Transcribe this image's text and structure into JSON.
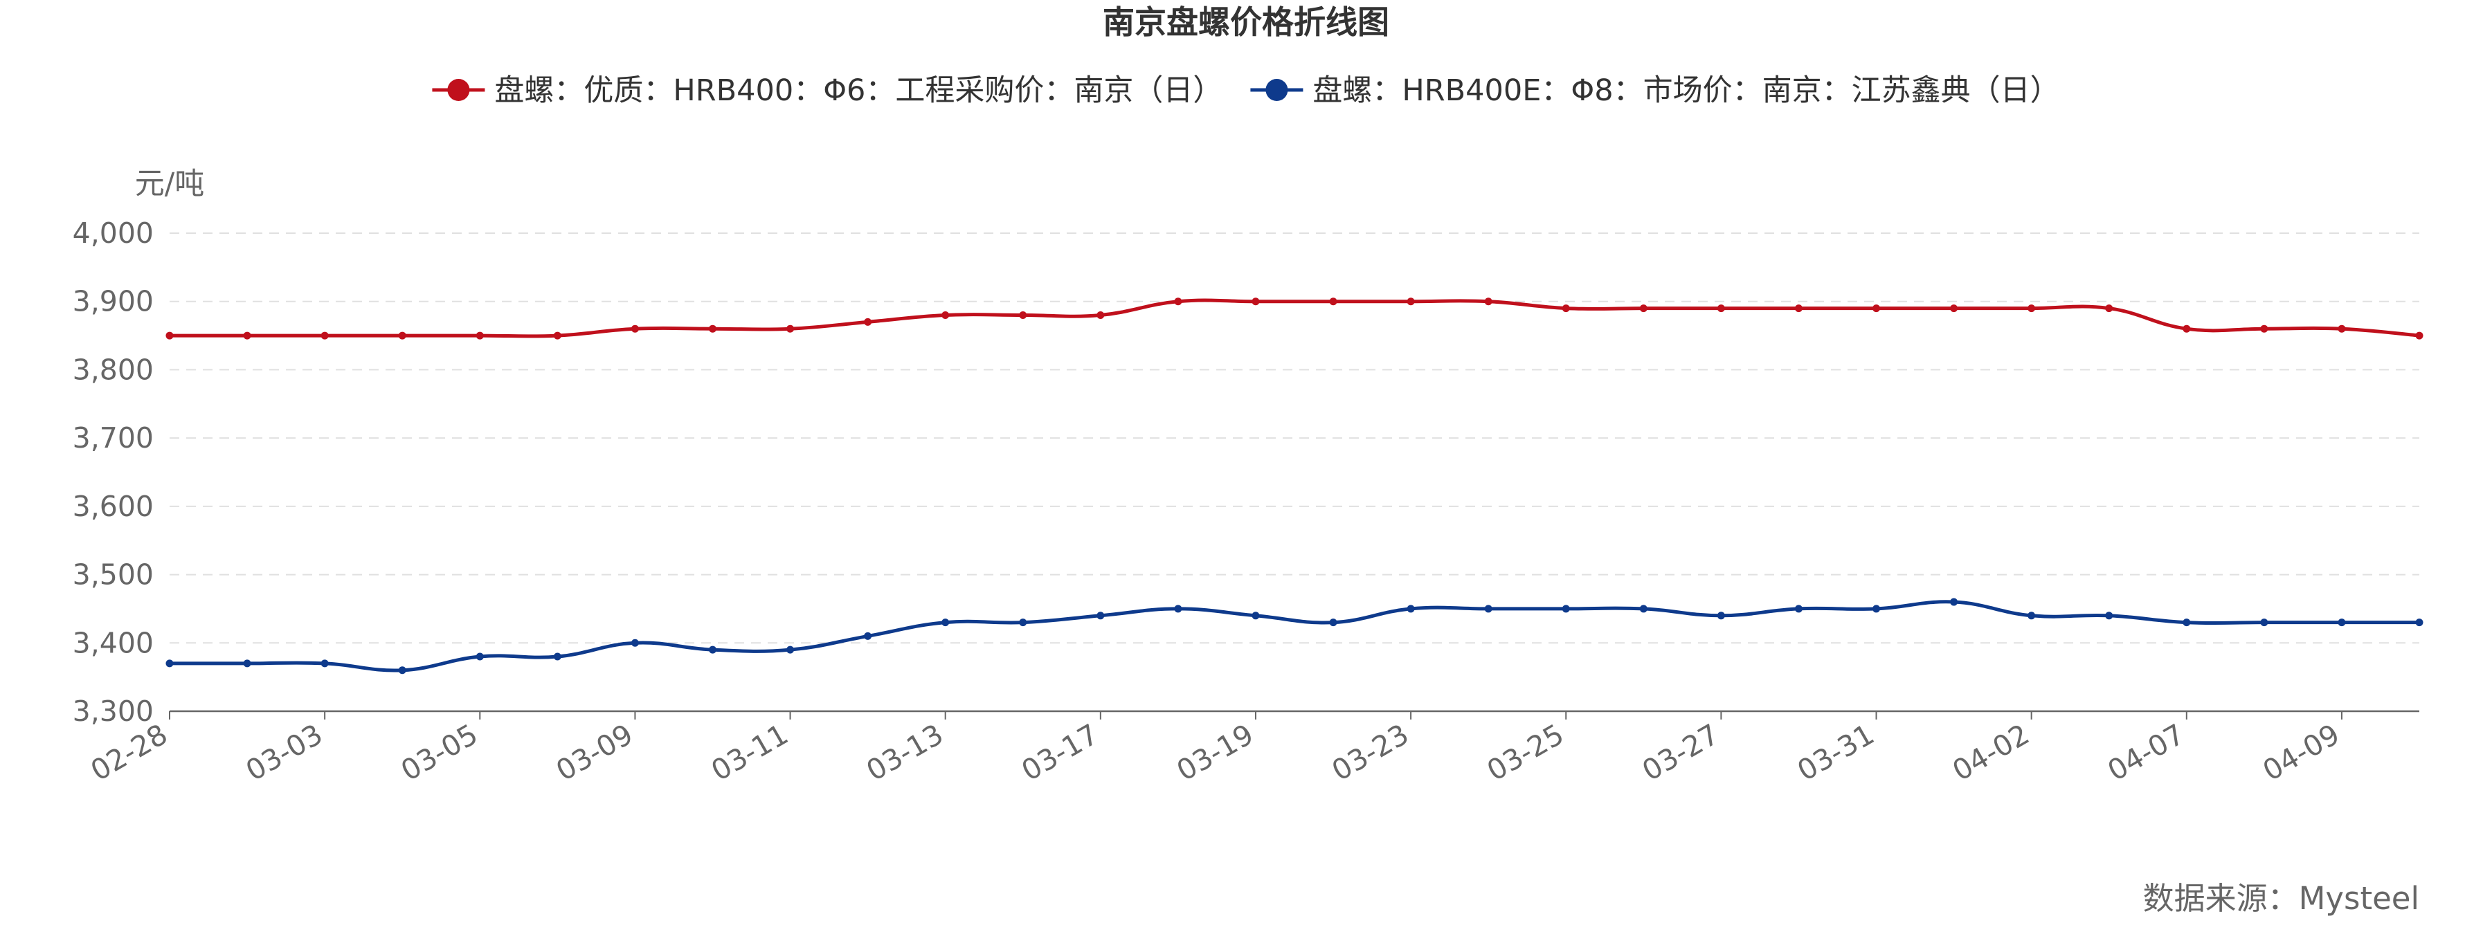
{
  "chart_data": {
    "type": "line",
    "title": "南京盘螺价格折线图",
    "ylabel": "元/吨",
    "source": "数据来源：Mysteel",
    "ylim": [
      3300,
      4000
    ],
    "yticks": [
      "3,300",
      "3,400",
      "3,500",
      "3,600",
      "3,700",
      "3,800",
      "3,900",
      "4,000"
    ],
    "ytick_values": [
      3300,
      3400,
      3500,
      3600,
      3700,
      3800,
      3900,
      4000
    ],
    "x_tick_labels": [
      "02-28",
      "03-03",
      "03-05",
      "03-09",
      "03-11",
      "03-13",
      "03-17",
      "03-19",
      "03-23",
      "03-25",
      "03-27",
      "03-31",
      "04-02",
      "04-07",
      "04-09"
    ],
    "x_tick_indices": [
      0,
      2,
      4,
      6,
      8,
      10,
      12,
      14,
      16,
      18,
      20,
      22,
      24,
      26,
      28
    ],
    "point_count": 30,
    "series": [
      {
        "name": "盘螺：优质：HRB400：Φ6：工程采购价：南京（日）",
        "color": "#c0101c",
        "values": [
          3850,
          3850,
          3850,
          3850,
          3850,
          3850,
          3860,
          3860,
          3860,
          3870,
          3880,
          3880,
          3880,
          3900,
          3900,
          3900,
          3900,
          3900,
          3890,
          3890,
          3890,
          3890,
          3890,
          3890,
          3890,
          3890,
          3860,
          3860,
          3860,
          3850
        ]
      },
      {
        "name": "盘螺：HRB400E：Φ8：市场价：南京：江苏鑫典（日）",
        "color": "#0e3a8c",
        "values": [
          3370,
          3370,
          3370,
          3360,
          3380,
          3380,
          3400,
          3390,
          3390,
          3410,
          3430,
          3430,
          3440,
          3450,
          3440,
          3430,
          3450,
          3450,
          3450,
          3450,
          3440,
          3450,
          3450,
          3460,
          3440,
          3440,
          3430,
          3430,
          3430,
          3430
        ]
      }
    ],
    "grid": true,
    "legend_position": "top-center"
  }
}
